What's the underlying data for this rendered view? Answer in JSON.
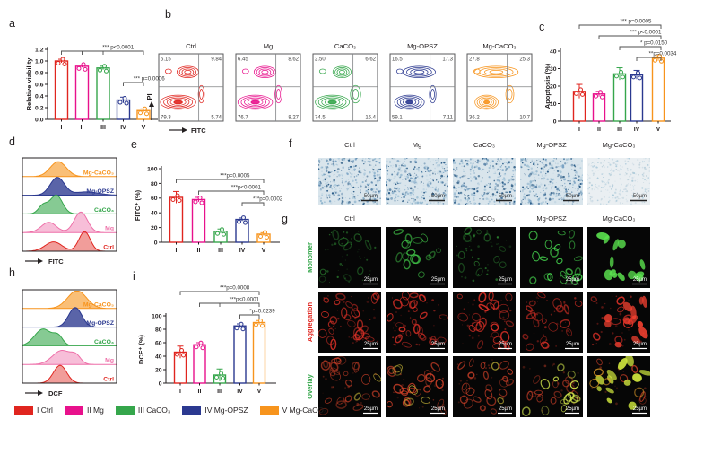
{
  "figure": {
    "background": "#ffffff"
  },
  "groups": [
    {
      "numeral": "I",
      "name": "Ctrl",
      "color": "#e0251f"
    },
    {
      "numeral": "II",
      "name": "Mg",
      "color": "#e8118c"
    },
    {
      "numeral": "III",
      "name": "CaCO₃",
      "color": "#35a64b"
    },
    {
      "numeral": "IV",
      "name": "Mg-OPSZ",
      "color": "#2b3990"
    },
    {
      "numeral": "V",
      "name": "Mg-CaCO₃",
      "color": "#f7941d"
    }
  ],
  "legend": {
    "items": [
      {
        "label": "I Ctrl",
        "color": "#e0251f"
      },
      {
        "label": "II Mg",
        "color": "#e8118c"
      },
      {
        "label": "III CaCO₃",
        "color": "#35a64b"
      },
      {
        "label": "IV Mg-OPSZ",
        "color": "#2b3990"
      },
      {
        "label": "V Mg-CaCO₃",
        "color": "#f7941d"
      }
    ]
  },
  "panel_a": {
    "label": "a",
    "ylabel": "Relative viability",
    "categories": [
      "I",
      "II",
      "III",
      "IV",
      "V"
    ],
    "values": [
      1.0,
      0.91,
      0.88,
      0.33,
      0.15
    ],
    "errors": [
      0.03,
      0.02,
      0.03,
      0.05,
      0.03
    ],
    "yticks": [
      "1.2",
      "1.0",
      "0.8",
      "0.6",
      "0.4",
      "0.2",
      "0.0"
    ],
    "ymax": 1.2,
    "sig": [
      {
        "text": "*** p<0.0001",
        "from": 0,
        "to": 4,
        "comb": [
          1,
          2
        ]
      },
      {
        "text": "*** p=0.0006",
        "from": 3,
        "to": 4
      }
    ]
  },
  "panel_b": {
    "label": "b",
    "xlabel": "FITC",
    "ylabel": "PI",
    "plots": [
      {
        "title": "Ctrl",
        "color": "#e0251f",
        "ul": "5.15",
        "ur": "9.84",
        "ll": "79.3",
        "lr": "5.74"
      },
      {
        "title": "Mg",
        "color": "#e8118c",
        "ul": "6.45",
        "ur": "8.62",
        "ll": "76.7",
        "lr": "8.27"
      },
      {
        "title": "CaCO₃",
        "color": "#35a64b",
        "ul": "2.50",
        "ur": "6.62",
        "ll": "74.5",
        "lr": "16.4"
      },
      {
        "title": "Mg-OPSZ",
        "color": "#2b3990",
        "ul": "16.5",
        "ur": "17.3",
        "ll": "59.1",
        "lr": "7.11"
      },
      {
        "title": "Mg-CaCO₃",
        "color": "#f7941d",
        "ul": "27.8",
        "ur": "25.3",
        "ll": "36.2",
        "lr": "10.7"
      }
    ]
  },
  "panel_c": {
    "label": "c",
    "ylabel": "Apoptosis (%)",
    "categories": [
      "I",
      "II",
      "III",
      "IV",
      "V"
    ],
    "values": [
      17,
      15.5,
      27,
      26.5,
      36
    ],
    "errors": [
      4,
      1.5,
      3.5,
      2.5,
      1.5
    ],
    "yticks": [
      "40",
      "30",
      "20",
      "10",
      "0"
    ],
    "ymax": 40,
    "sig": [
      {
        "text": "*** p=0.0005",
        "from": 0,
        "to": 4
      },
      {
        "text": "*** p<0.0001",
        "from": 1,
        "to": 4
      },
      {
        "text": "* p=0.0150",
        "from": 2,
        "to": 4
      },
      {
        "text": "**p=0.0034",
        "from": 3,
        "to": 4
      }
    ]
  },
  "panel_d": {
    "label": "d",
    "xlabel": "FITC",
    "series": [
      {
        "label": "Mg-CaCO₃",
        "color": "#f7941d",
        "fill_opacity": 0.6,
        "peaks": [
          [
            0.38,
            0.085,
            0.8
          ]
        ]
      },
      {
        "label": "Mg-OPSZ",
        "color": "#2b3990",
        "fill_opacity": 0.78,
        "peaks": [
          [
            0.37,
            0.075,
            0.95
          ],
          [
            0.68,
            0.13,
            0.18
          ]
        ]
      },
      {
        "label": "CaCO₃",
        "color": "#35a64b",
        "fill_opacity": 0.6,
        "peaks": [
          [
            0.36,
            0.065,
            1.0
          ],
          [
            0.22,
            0.05,
            0.45
          ]
        ]
      },
      {
        "label": "Mg",
        "color": "#ee6fa8",
        "fill_opacity": 0.45,
        "peaks": [
          [
            0.28,
            0.08,
            0.55
          ],
          [
            0.62,
            0.07,
            1.1
          ]
        ]
      },
      {
        "label": "Ctrl",
        "color": "#e0251f",
        "fill_opacity": 0.45,
        "peaks": [
          [
            0.33,
            0.09,
            0.5
          ],
          [
            0.66,
            0.06,
            1.05
          ]
        ]
      }
    ]
  },
  "panel_e": {
    "label": "e",
    "ylabel": "FITC⁺ (%)",
    "categories": [
      "I",
      "II",
      "III",
      "IV",
      "V"
    ],
    "values": [
      61,
      58,
      15,
      31,
      11
    ],
    "errors": [
      8,
      3,
      3,
      2,
      2
    ],
    "yticks": [
      "100",
      "80",
      "60",
      "40",
      "20",
      "0"
    ],
    "ymax": 100,
    "sig": [
      {
        "text": "***p=0.0005",
        "from": 0,
        "to": 4
      },
      {
        "text": "***p<0.0001",
        "from": 1,
        "to": 4
      },
      {
        "text": "***p=0.0002",
        "from": 3,
        "to": 4
      }
    ]
  },
  "panel_f": {
    "label": "f",
    "columns": [
      "Ctrl",
      "Mg",
      "CaCO₃",
      "Mg-OPSZ",
      "Mg-CaCO₃"
    ],
    "scale_bar": "50µm"
  },
  "panel_g": {
    "label": "g",
    "columns": [
      "Ctrl",
      "Mg",
      "CaCO₃",
      "Mg-OPSZ",
      "Mg-CaCO₃"
    ],
    "rows": [
      {
        "label": "Monomer",
        "color": "#35a64b"
      },
      {
        "label": "Aggregation",
        "color": "#e0251f"
      },
      {
        "label": "Overlay",
        "color": "#35a64b"
      }
    ],
    "scale_bar": "25µm"
  },
  "panel_h": {
    "label": "h",
    "xlabel": "DCF",
    "series": [
      {
        "label": "Mg-CaCO₃",
        "color": "#f7941d",
        "fill_opacity": 0.6,
        "peaks": [
          [
            0.58,
            0.1,
            0.95
          ]
        ]
      },
      {
        "label": "Mg-OPSZ",
        "color": "#2b3990",
        "fill_opacity": 0.78,
        "peaks": [
          [
            0.56,
            0.07,
            1.05
          ]
        ]
      },
      {
        "label": "CaCO₃",
        "color": "#35a64b",
        "fill_opacity": 0.6,
        "peaks": [
          [
            0.22,
            0.09,
            0.9
          ],
          [
            0.38,
            0.05,
            0.45
          ]
        ]
      },
      {
        "label": "Mg",
        "color": "#ee6fa8",
        "fill_opacity": 0.45,
        "peaks": [
          [
            0.42,
            0.1,
            0.75
          ],
          [
            0.57,
            0.05,
            0.35
          ]
        ]
      },
      {
        "label": "Ctrl",
        "color": "#e0251f",
        "fill_opacity": 0.45,
        "peaks": [
          [
            0.4,
            0.07,
            0.95
          ]
        ]
      }
    ]
  },
  "panel_i": {
    "label": "i",
    "ylabel": "DCF⁺ (%)",
    "categories": [
      "I",
      "II",
      "III",
      "IV",
      "V"
    ],
    "values": [
      46,
      57,
      12,
      85,
      90
    ],
    "errors": [
      9,
      3,
      9,
      3,
      3
    ],
    "yticks": [
      "100",
      "80",
      "60",
      "40",
      "20",
      "0"
    ],
    "ymax": 100,
    "sig": [
      {
        "text": "***p=0.0008",
        "from": 0,
        "to": 4
      },
      {
        "text": "***p<0.0001",
        "from": 1,
        "to": 4,
        "comb": [
          2
        ]
      },
      {
        "text": "*p=0.0239",
        "from": 3,
        "to": 4
      }
    ]
  },
  "chart_data": [
    {
      "type": "bar",
      "panel": "a",
      "title": "Relative viability",
      "categories": [
        "I Ctrl",
        "II Mg",
        "III CaCO₃",
        "IV Mg-OPSZ",
        "V Mg-CaCO₃"
      ],
      "values": [
        1.0,
        0.91,
        0.88,
        0.33,
        0.15
      ],
      "errors": [
        0.03,
        0.02,
        0.03,
        0.05,
        0.03
      ],
      "ylabel": "Relative viability",
      "ylim": [
        0,
        1.2
      ],
      "annotations": [
        "*** p<0.0001 (I/II/III vs V)",
        "*** p=0.0006 (IV vs V)"
      ]
    },
    {
      "type": "bar",
      "panel": "c",
      "title": "Apoptosis (%)",
      "categories": [
        "I Ctrl",
        "II Mg",
        "III CaCO₃",
        "IV Mg-OPSZ",
        "V Mg-CaCO₃"
      ],
      "values": [
        17,
        15.5,
        27,
        26.5,
        36
      ],
      "errors": [
        4,
        1.5,
        3.5,
        2.5,
        1.5
      ],
      "ylabel": "Apoptosis (%)",
      "ylim": [
        0,
        40
      ],
      "annotations": [
        "*** p=0.0005 (I vs V)",
        "*** p<0.0001 (II vs V)",
        "* p=0.0150 (III vs V)",
        "**p=0.0034 (IV vs V)"
      ]
    },
    {
      "type": "bar",
      "panel": "e",
      "title": "FITC⁺ (%)",
      "categories": [
        "I Ctrl",
        "II Mg",
        "III CaCO₃",
        "IV Mg-OPSZ",
        "V Mg-CaCO₃"
      ],
      "values": [
        61,
        58,
        15,
        31,
        11
      ],
      "errors": [
        8,
        3,
        3,
        2,
        2
      ],
      "ylabel": "FITC⁺ (%)",
      "ylim": [
        0,
        100
      ],
      "annotations": [
        "***p=0.0005 (I vs V)",
        "***p<0.0001 (II vs V)",
        "***p=0.0002 (IV vs V)"
      ]
    },
    {
      "type": "bar",
      "panel": "i",
      "title": "DCF⁺ (%)",
      "categories": [
        "I Ctrl",
        "II Mg",
        "III CaCO₃",
        "IV Mg-OPSZ",
        "V Mg-CaCO₃"
      ],
      "values": [
        46,
        57,
        12,
        85,
        90
      ],
      "errors": [
        9,
        3,
        9,
        3,
        3
      ],
      "ylabel": "DCF⁺ (%)",
      "ylim": [
        0,
        100
      ],
      "annotations": [
        "***p=0.0008 (I vs V)",
        "***p<0.0001 (II/III vs V)",
        "*p=0.0239 (IV vs V)"
      ]
    },
    {
      "type": "table",
      "panel": "b",
      "title": "Flow cytometry PI vs FITC quadrant percentages",
      "columns": [
        "group",
        "upper-left",
        "upper-right",
        "lower-left",
        "lower-right"
      ],
      "rows": [
        [
          "Ctrl",
          5.15,
          9.84,
          79.3,
          5.74
        ],
        [
          "Mg",
          6.45,
          8.62,
          76.7,
          8.27
        ],
        [
          "CaCO₃",
          2.5,
          6.62,
          74.5,
          16.4
        ],
        [
          "Mg-OPSZ",
          16.5,
          17.3,
          59.1,
          7.11
        ],
        [
          "Mg-CaCO₃",
          27.8,
          25.3,
          36.2,
          10.7
        ]
      ]
    }
  ]
}
